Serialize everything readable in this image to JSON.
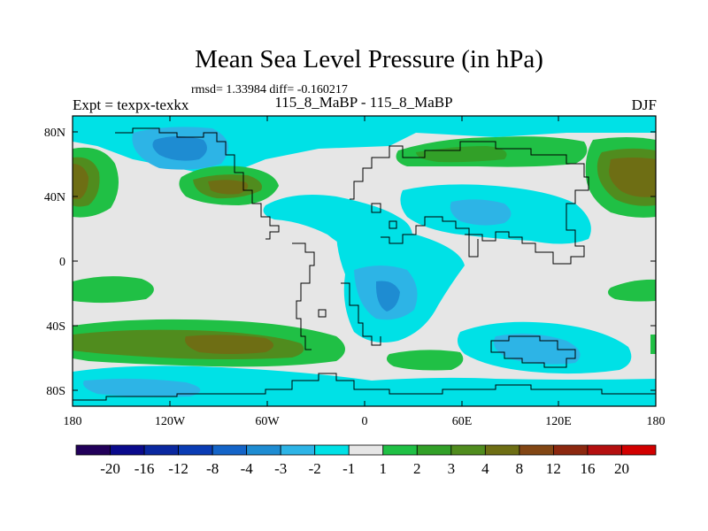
{
  "header": {
    "title": "Mean Sea Level Pressure (in hPa)",
    "stats": "rmsd= 1.33984 diff= -0.160217",
    "experiment": "Expt = texpx-texkx",
    "runs": "115_8_MaBP - 115_8_MaBP",
    "season": "DJF"
  },
  "axes": {
    "x_ticks": [
      "180",
      "120W",
      "60W",
      "0",
      "60E",
      "120E",
      "180"
    ],
    "y_ticks": [
      "80N",
      "40N",
      "0",
      "40S",
      "80S"
    ]
  },
  "colors": {
    "land_outline": "#000000",
    "background_zero": "#e6e6e6"
  },
  "colorbar": {
    "colors": [
      "#22005a",
      "#0a0a8c",
      "#0a28a0",
      "#0a3cb4",
      "#1464c8",
      "#1e8cd2",
      "#2db4e6",
      "#00e1e6",
      "#e6e6e6",
      "#20c045",
      "#32a028",
      "#508c1e",
      "#6e6e14",
      "#824614",
      "#8c280f",
      "#b40f0f",
      "#d20000"
    ],
    "labels": [
      "-20",
      "-16",
      "-12",
      "-8",
      "-4",
      "-3",
      "-2",
      "-1",
      "1",
      "2",
      "3",
      "4",
      "8",
      "12",
      "16",
      "20"
    ]
  },
  "chart_data": {
    "type": "contour-map",
    "variable": "Mean Sea Level Pressure difference",
    "units": "hPa",
    "season": "DJF",
    "lon_range": [
      -180,
      180
    ],
    "lat_range": [
      -90,
      90
    ],
    "contour_levels": [
      -20,
      -16,
      -12,
      -8,
      -4,
      -3,
      -2,
      -1,
      1,
      2,
      3,
      4,
      8,
      12,
      16,
      20
    ]
  }
}
